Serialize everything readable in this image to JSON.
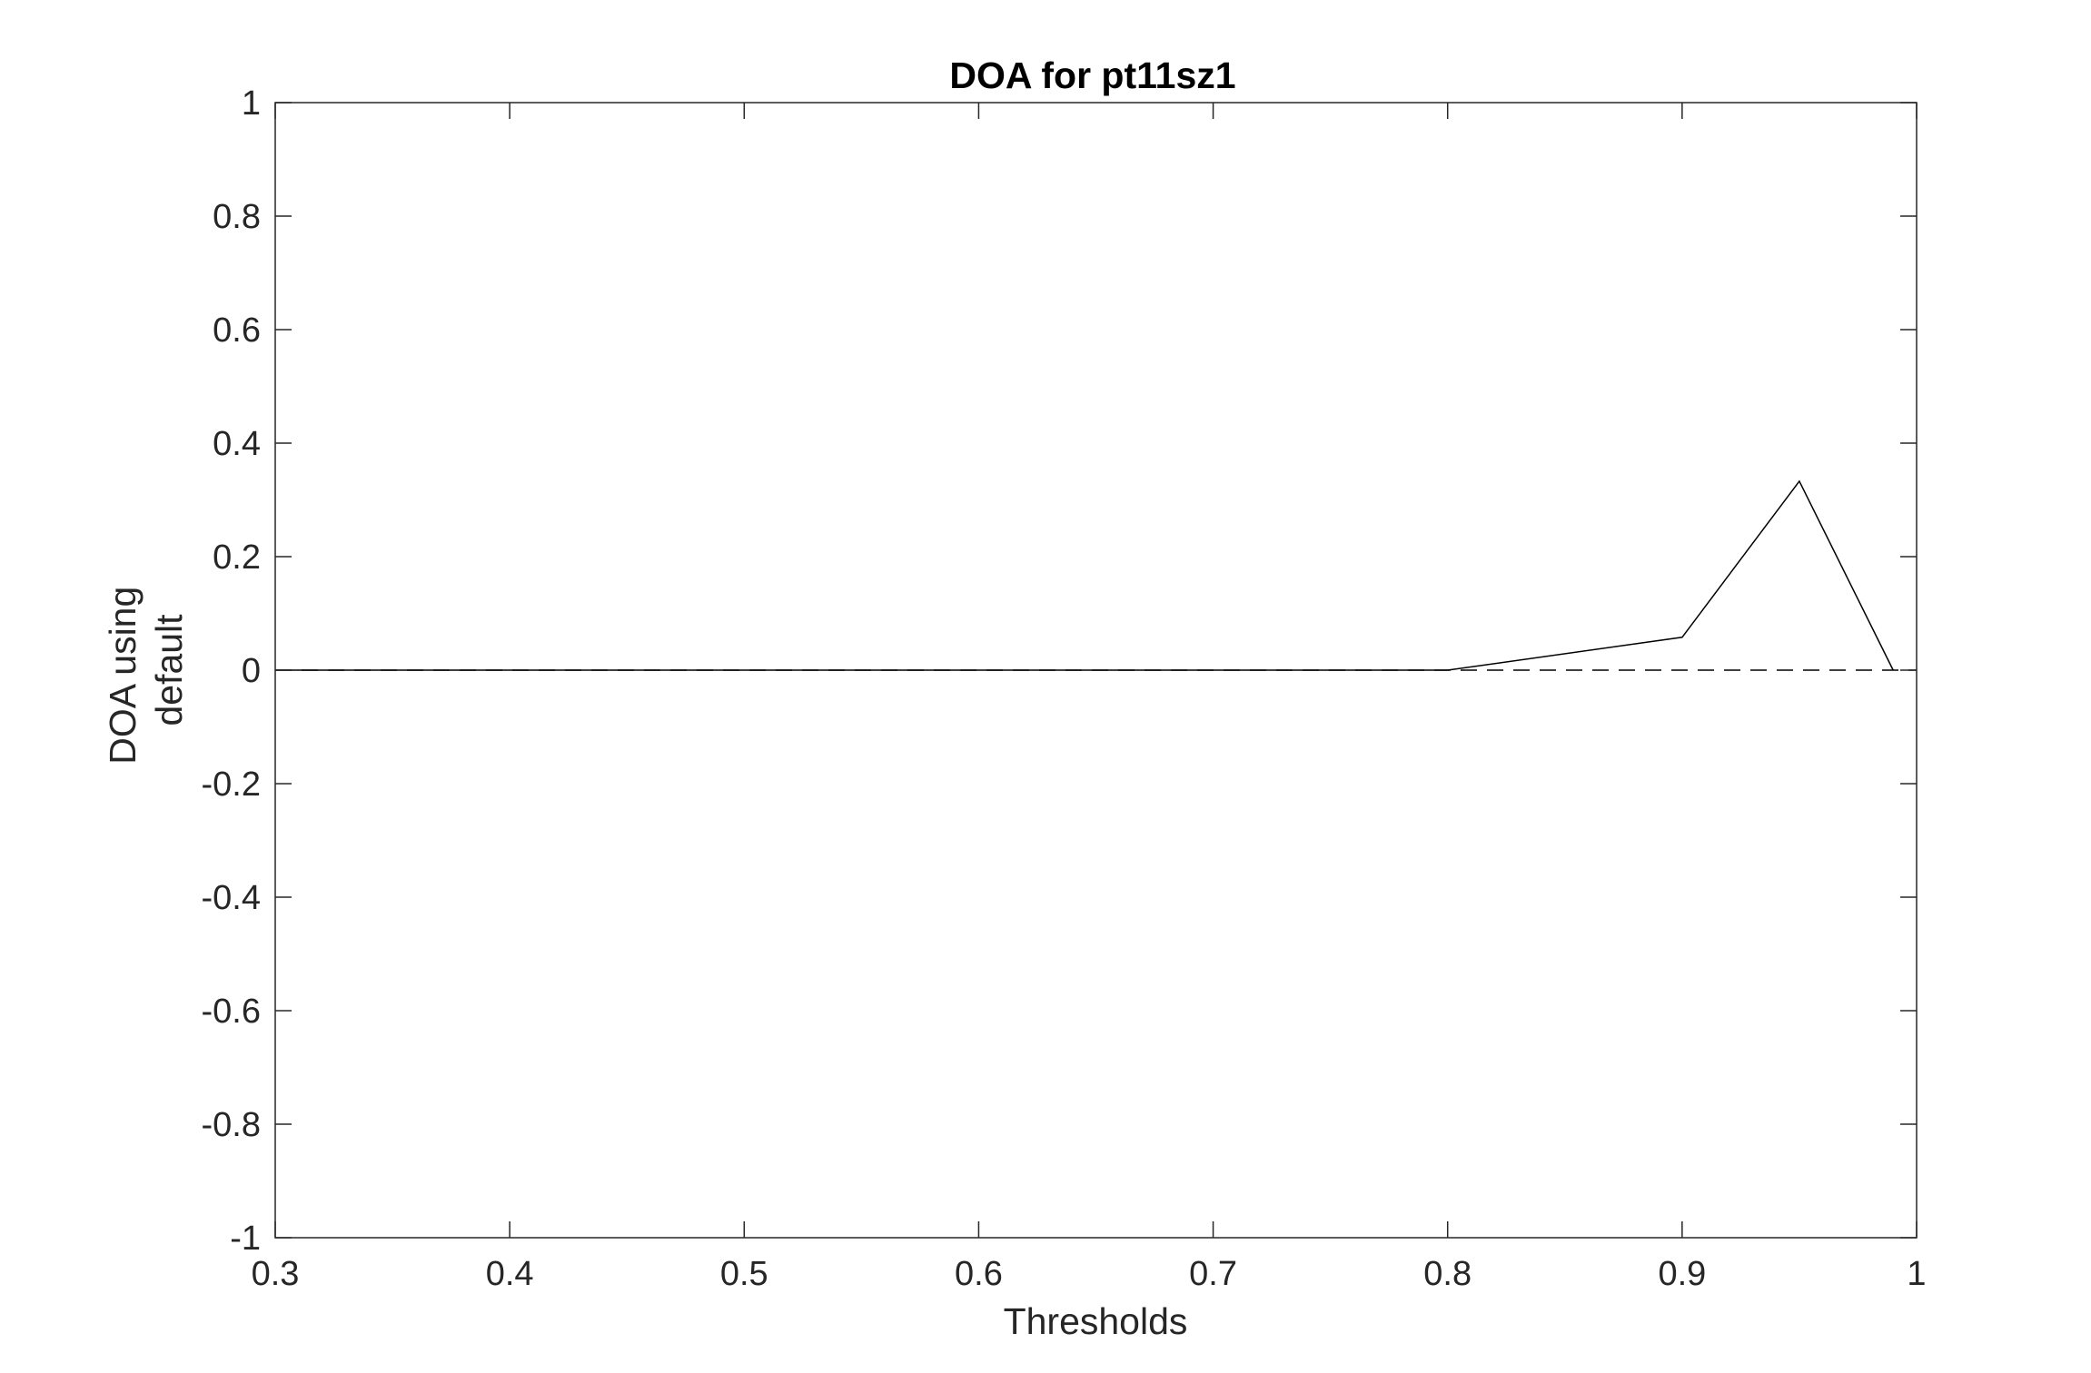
{
  "chart_data": {
    "type": "line",
    "title": "DOA for pt11sz1",
    "xlabel": "Thresholds",
    "ylabel_lines": [
      "DOA using",
      "default"
    ],
    "xlim": [
      0.3,
      1
    ],
    "ylim": [
      -1,
      1
    ],
    "x_ticks": [
      0.3,
      0.4,
      0.5,
      0.6,
      0.7,
      0.8,
      0.9,
      1
    ],
    "x_tick_labels": [
      "0.3",
      "0.4",
      "0.5",
      "0.6",
      "0.7",
      "0.8",
      "0.9",
      "1"
    ],
    "y_ticks": [
      -1,
      -0.8,
      -0.6,
      -0.4,
      -0.2,
      0,
      0.2,
      0.4,
      0.6,
      0.8,
      1
    ],
    "y_tick_labels": [
      "-1",
      "-0.8",
      "-0.6",
      "-0.4",
      "-0.2",
      "0",
      "0.2",
      "0.4",
      "0.6",
      "0.8",
      "1"
    ],
    "grid": false,
    "box": true,
    "series": [
      {
        "style": "solid",
        "color": "#000000",
        "x": [
          0.3,
          0.4,
          0.5,
          0.6,
          0.7,
          0.8,
          0.9,
          0.95,
          0.99
        ],
        "y": [
          0,
          0,
          0,
          0,
          0,
          0,
          0.058,
          0.333,
          0
        ]
      },
      {
        "style": "dashed",
        "color": "#000000",
        "x": [
          0.3,
          1
        ],
        "y": [
          0,
          0
        ]
      }
    ]
  }
}
